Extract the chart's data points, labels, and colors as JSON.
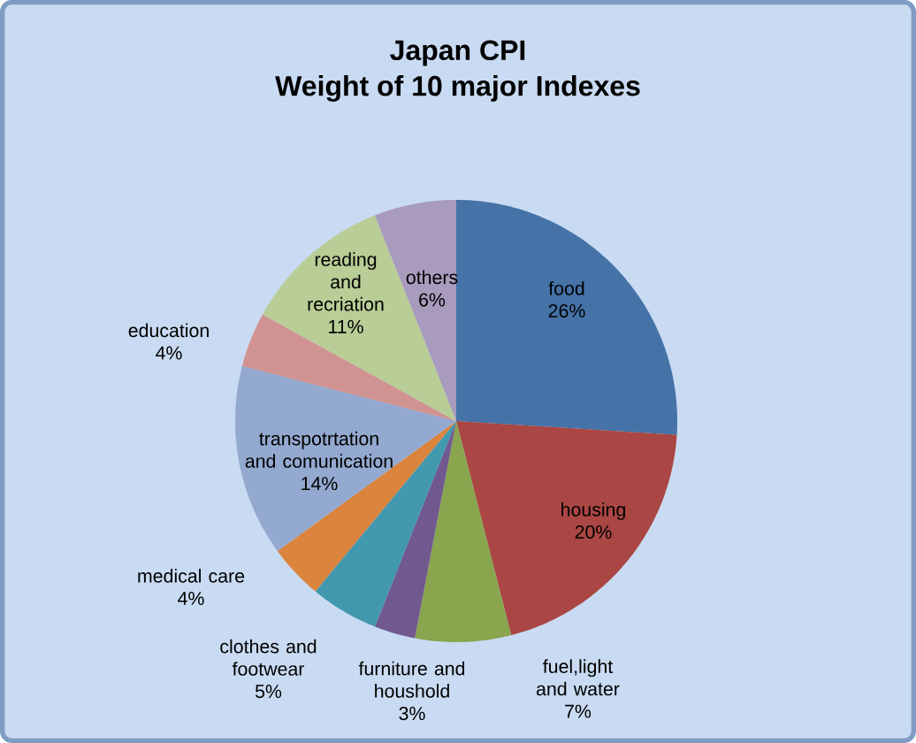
{
  "chart_data": {
    "type": "pie",
    "title": "Japan CPI",
    "subtitle": "Weight of 10 major Indexes",
    "categories": [
      "food",
      "housing",
      "fuel,light and water",
      "furniture and houshold",
      "clothes and footwear",
      "medical care",
      "transpotrtation and comunication",
      "education",
      "reading and recriation",
      "others"
    ],
    "values": [
      26,
      20,
      7,
      3,
      5,
      4,
      14,
      4,
      11,
      6
    ],
    "value_labels": [
      "26%",
      "20%",
      "7%",
      "3%",
      "5%",
      "4%",
      "14%",
      "4%",
      "11%",
      "6%"
    ],
    "colors": [
      "#4572a7",
      "#aa4643",
      "#89a54e",
      "#71588f",
      "#4198af",
      "#db843d",
      "#93a9cf",
      "#d19392",
      "#b9cd96",
      "#a99bbd"
    ]
  }
}
